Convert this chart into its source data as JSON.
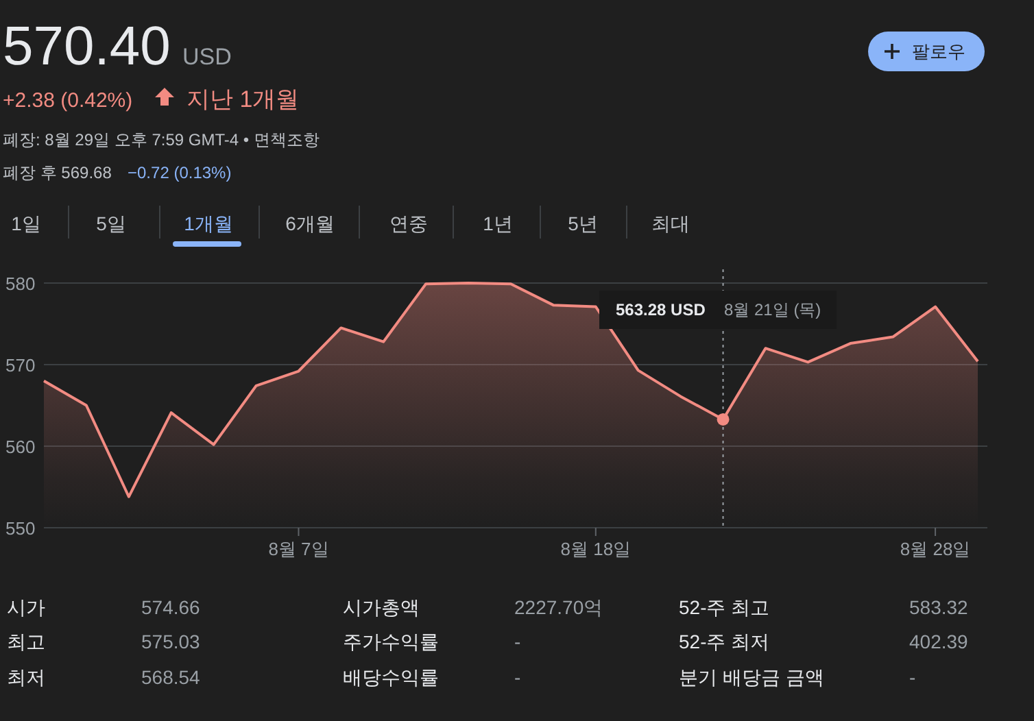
{
  "chart_data": {
    "type": "area",
    "title": "570.40",
    "categories": [
      null,
      null,
      null,
      null,
      null,
      null,
      "8월 7일",
      null,
      null,
      null,
      null,
      null,
      null,
      "8월 18일",
      null,
      null,
      null,
      null,
      null,
      null,
      null,
      "8월 28일",
      null
    ],
    "series": [
      {
        "color": "#f28b82",
        "values": [
          568.0,
          565.0,
          553.8,
          564.1,
          560.2,
          567.4,
          569.2,
          574.5,
          572.8,
          579.9,
          580.0,
          579.9,
          577.3,
          577.1,
          569.3,
          566.1,
          563.28,
          572.0,
          570.3,
          572.6,
          573.4,
          577.1,
          570.4
        ]
      },
      {
        "type": "scatter",
        "color": "#f28b82",
        "values": [
          null,
          null,
          null,
          null,
          null,
          null,
          null,
          null,
          null,
          null,
          null,
          null,
          null,
          null,
          null,
          null,
          563.28,
          null,
          null,
          null,
          null,
          null,
          null
        ]
      }
    ],
    "ylim": [
      550,
      580
    ],
    "yticks": [
      550,
      560,
      570,
      580
    ],
    "grid": "y",
    "annotations": [
      "USD",
      "+2.38 (0.42%)",
      "지난 1개월",
      "폐장: 8월 29일 오후 7:59 GMT-4 • 면책조항",
      "폐장 후 569.68",
      "−0.72 (0.13%)",
      "팔로우",
      "1일",
      "5일",
      "1개월",
      "6개월",
      "연중",
      "1년",
      "5년",
      "최대",
      "563.28 USD",
      "8월 21일 (목)",
      "시가",
      "574.66",
      "시가총액",
      "2227.70억",
      "52-주 최고",
      "583.32",
      "최고",
      "575.03",
      "주가수익률",
      "-",
      "52-주 최저",
      "402.39",
      "최저",
      "568.54",
      "배당수익률",
      "-",
      "분기 배당금 금액",
      "-"
    ]
  }
}
